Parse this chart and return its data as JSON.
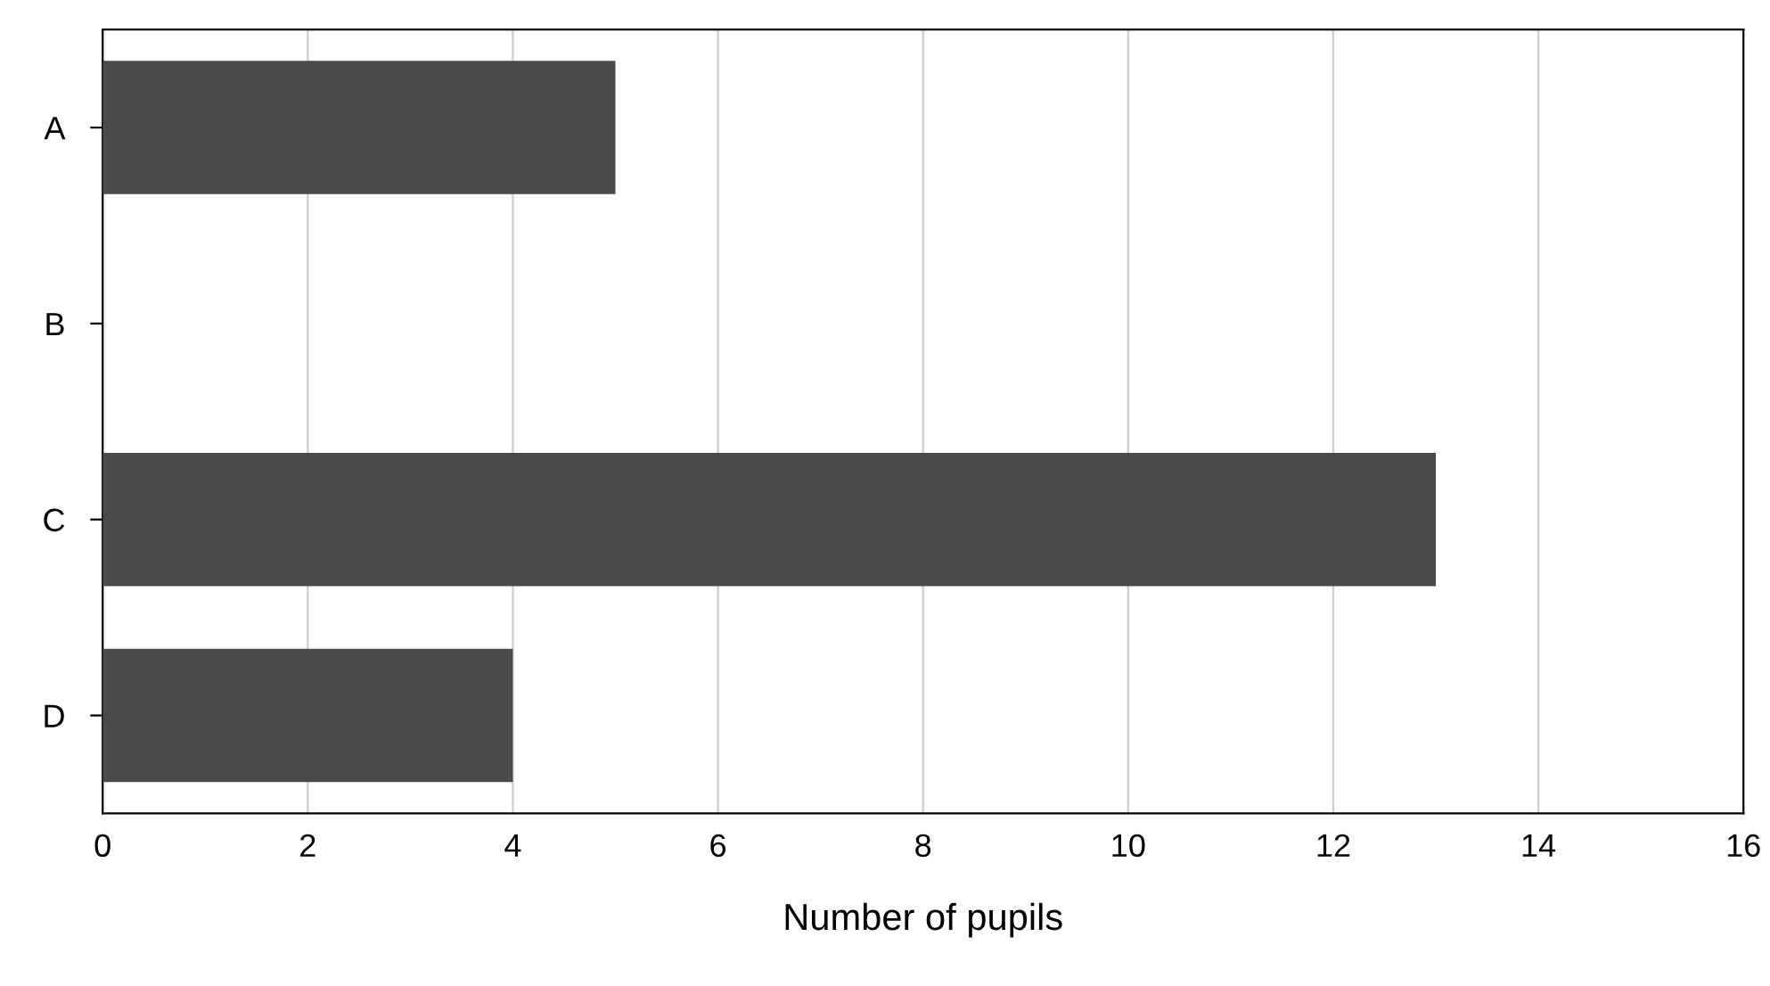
{
  "chart_data": {
    "type": "bar",
    "orientation": "horizontal",
    "xlabel": "Number of pupils",
    "categories": [
      "A",
      "B",
      "C",
      "D"
    ],
    "values": [
      5,
      0,
      13,
      4
    ],
    "color": "#4a4a4a",
    "xlim": [
      0,
      16
    ],
    "xticks": [
      0,
      2,
      4,
      6,
      8,
      10,
      12,
      14,
      16
    ],
    "grid": "x"
  }
}
